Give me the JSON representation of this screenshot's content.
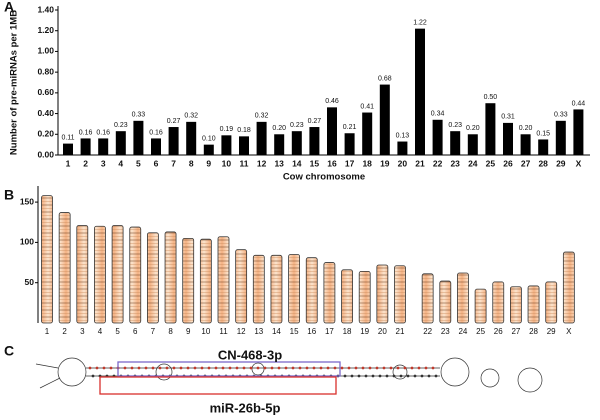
{
  "chart_data": [
    {
      "type": "bar",
      "panel_label": "A",
      "ylabel": "Number of pre-miRNAs per 1MB",
      "xlabel": "Cow chromosome",
      "categories": [
        "1",
        "2",
        "3",
        "4",
        "5",
        "6",
        "7",
        "8",
        "9",
        "10",
        "11",
        "12",
        "13",
        "14",
        "15",
        "16",
        "17",
        "18",
        "19",
        "20",
        "21",
        "22",
        "23",
        "24",
        "25",
        "26",
        "27",
        "28",
        "29",
        "X"
      ],
      "values": [
        0.11,
        0.16,
        0.16,
        0.23,
        0.33,
        0.16,
        0.27,
        0.32,
        0.1,
        0.19,
        0.18,
        0.32,
        0.2,
        0.23,
        0.27,
        0.46,
        0.21,
        0.41,
        0.68,
        0.13,
        1.22,
        0.34,
        0.23,
        0.2,
        0.5,
        0.31,
        0.2,
        0.15,
        0.33,
        0.44
      ],
      "value_labels": [
        "0.11",
        "0.16",
        "0.16",
        "0.23",
        "0.33",
        "0.16",
        "0.27",
        "0.32",
        "0.10",
        "0.19",
        "0.18",
        "0.32",
        "0.20",
        "0.23",
        "0.27",
        "0.46",
        "0.21",
        "0.41",
        "0.68",
        "0.13",
        "1.22",
        "0.34",
        "0.23",
        "0.20",
        "0.50",
        "0.31",
        "0.20",
        "0.15",
        "0.33",
        "0.44"
      ],
      "color": "#000000",
      "ylim": [
        0,
        1.4
      ],
      "yticks": [
        {
          "value": 0,
          "label": "0.00"
        },
        {
          "value": 0.2,
          "label": "0.20"
        },
        {
          "value": 0.4,
          "label": "0.40"
        },
        {
          "value": 0.6,
          "label": "0.60"
        },
        {
          "value": 0.8,
          "label": "0.80"
        },
        {
          "value": 1,
          "label": "1.00"
        },
        {
          "value": 1.2,
          "label": "1.20"
        },
        {
          "value": 1.4,
          "label": "1.40"
        }
      ]
    },
    {
      "type": "ideogram",
      "panel_label": "B",
      "categories": [
        "1",
        "2",
        "3",
        "4",
        "5",
        "6",
        "7",
        "8",
        "9",
        "10",
        "11",
        "12",
        "13",
        "14",
        "15",
        "16",
        "17",
        "18",
        "19",
        "20",
        "21",
        "22",
        "23",
        "24",
        "25",
        "26",
        "27",
        "28",
        "29",
        "X"
      ],
      "values": [
        158,
        137,
        121,
        120,
        121,
        119,
        112,
        113,
        105,
        104,
        107,
        91,
        84,
        84,
        85,
        81,
        75,
        66,
        64,
        72,
        71,
        61,
        52,
        62,
        42,
        51,
        45,
        46,
        51,
        88
      ],
      "color": "#f4b183",
      "ylim": [
        0,
        165
      ],
      "yticks": [
        50,
        100,
        150
      ]
    }
  ],
  "diagram": {
    "panel_label": "C",
    "labels": [
      "CN-468-3p",
      "miR-26b-5p"
    ]
  }
}
